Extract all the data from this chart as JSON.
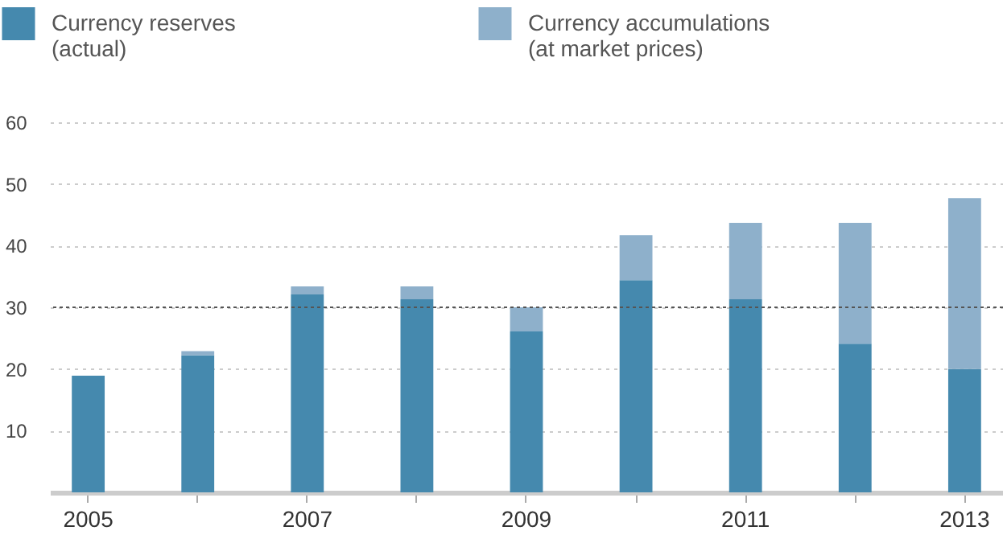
{
  "chart_data": {
    "type": "bar",
    "stacked": true,
    "categories": [
      "2005",
      null,
      "2007",
      null,
      "2009",
      null,
      "2011",
      null,
      "2013"
    ],
    "series": [
      {
        "name": "Currency reserves\n(actual)",
        "color": "#4589ae",
        "values": [
          18.9,
          22.2,
          32.1,
          31.3,
          26.1,
          34.4,
          31.3,
          24.1,
          20.0
        ]
      },
      {
        "name": "Currency accumulations\n(at market prices)",
        "color": "#8eb0cb",
        "values": [
          0,
          0.7,
          1.3,
          2.1,
          3.9,
          7.3,
          12.4,
          19.6,
          27.7
        ]
      }
    ],
    "ylim": [
      0,
      60
    ],
    "yticks": [
      10,
      20,
      30,
      40,
      50,
      60
    ],
    "grid": "y",
    "legend": "top left",
    "ref_lines": [
      {
        "axis": "y",
        "value": 30,
        "color": "#555555",
        "line_style": "dotted"
      }
    ]
  }
}
